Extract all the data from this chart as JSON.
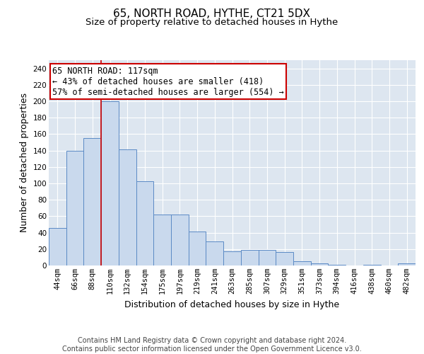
{
  "title": "65, NORTH ROAD, HYTHE, CT21 5DX",
  "subtitle": "Size of property relative to detached houses in Hythe",
  "xlabel": "Distribution of detached houses by size in Hythe",
  "ylabel": "Number of detached properties",
  "bin_labels": [
    "44sqm",
    "66sqm",
    "88sqm",
    "110sqm",
    "132sqm",
    "154sqm",
    "175sqm",
    "197sqm",
    "219sqm",
    "241sqm",
    "263sqm",
    "285sqm",
    "307sqm",
    "329sqm",
    "351sqm",
    "373sqm",
    "394sqm",
    "416sqm",
    "438sqm",
    "460sqm",
    "482sqm"
  ],
  "bar_values": [
    46,
    140,
    155,
    200,
    141,
    103,
    62,
    62,
    41,
    29,
    17,
    19,
    19,
    16,
    5,
    3,
    1,
    0,
    1,
    0,
    3
  ],
  "bar_color": "#c9d9ed",
  "bar_edge_color": "#5b8ac5",
  "annotation_text": "65 NORTH ROAD: 117sqm\n← 43% of detached houses are smaller (418)\n57% of semi-detached houses are larger (554) →",
  "annotation_box_color": "#ffffff",
  "annotation_box_edge": "#cc0000",
  "vline_x_index": 2.5,
  "vline_color": "#cc0000",
  "ylim": [
    0,
    250
  ],
  "yticks": [
    0,
    20,
    40,
    60,
    80,
    100,
    120,
    140,
    160,
    180,
    200,
    220,
    240
  ],
  "background_color": "#dde6f0",
  "grid_color": "#ffffff",
  "footer_text": "Contains HM Land Registry data © Crown copyright and database right 2024.\nContains public sector information licensed under the Open Government Licence v3.0.",
  "title_fontsize": 11,
  "subtitle_fontsize": 9.5,
  "ylabel_fontsize": 9,
  "xlabel_fontsize": 9,
  "tick_fontsize": 7.5,
  "annotation_fontsize": 8.5,
  "footer_fontsize": 7
}
